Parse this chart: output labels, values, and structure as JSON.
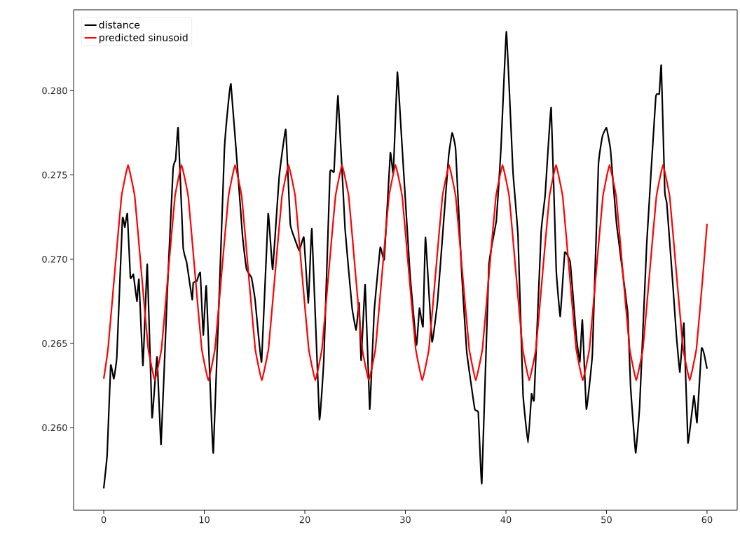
{
  "chart_data": {
    "type": "line",
    "xlim": [
      -3,
      63
    ],
    "ylim": [
      0.2551,
      0.2848
    ],
    "xticks": [
      0,
      10,
      20,
      30,
      40,
      50,
      60
    ],
    "yticks": [
      {
        "value": 0.26,
        "label": "0.260"
      },
      {
        "value": 0.265,
        "label": "0.265"
      },
      {
        "value": 0.27,
        "label": "0.270"
      },
      {
        "value": 0.275,
        "label": "0.275"
      },
      {
        "value": 0.28,
        "label": "0.280"
      }
    ],
    "legend": "top left",
    "series": [
      {
        "name": "distance",
        "color": "#000000",
        "x": [
          0,
          0.34,
          0.69,
          1.0,
          1.3,
          1.86,
          2.1,
          2.35,
          2.65,
          2.95,
          3.3,
          3.5,
          3.9,
          4.33,
          4.8,
          5.3,
          5.7,
          6.3,
          6.9,
          7.15,
          7.4,
          7.9,
          8.25,
          8.8,
          8.9,
          9.25,
          9.6,
          9.9,
          10.2,
          10.9,
          12.0,
          12.65,
          13.8,
          14.2,
          14.7,
          15.05,
          15.7,
          16.35,
          16.8,
          17.45,
          18.1,
          18.55,
          19.0,
          19.45,
          19.9,
          20.35,
          20.7,
          21.45,
          21.9,
          22.5,
          22.9,
          23.3,
          24.0,
          24.7,
          25.1,
          25.4,
          25.6,
          26.0,
          26.45,
          26.9,
          27.5,
          27.9,
          28.5,
          28.8,
          29.2,
          29.6,
          30.45,
          31.1,
          31.4,
          31.75,
          32.0,
          32.65,
          33.2,
          33.7,
          34.3,
          34.65,
          35.0,
          35.6,
          36.1,
          36.9,
          37.25,
          37.6,
          38.3,
          39.05,
          39.5,
          40.05,
          40.7,
          41.2,
          41.7,
          42.2,
          42.55,
          42.8,
          43.5,
          43.9,
          44.5,
          45.0,
          45.4,
          45.85,
          46.4,
          47.0,
          47.35,
          47.6,
          48.0,
          48.6,
          49.2,
          49.6,
          50.0,
          50.4,
          51.0,
          52.1,
          52.4,
          52.9,
          53.3,
          54.0,
          54.9,
          55.25,
          55.45,
          55.8,
          56.0,
          56.6,
          56.95,
          57.3,
          57.7,
          58.1,
          58.7,
          59.0,
          59.45,
          59.7,
          60.0
        ],
        "values": [
          0.2564,
          0.2584,
          0.2637,
          0.2629,
          0.2642,
          0.2724,
          0.2719,
          0.2727,
          0.2689,
          0.2691,
          0.2675,
          0.2688,
          0.2637,
          0.2697,
          0.2606,
          0.2642,
          0.259,
          0.2678,
          0.2754,
          0.2759,
          0.2778,
          0.2707,
          0.2698,
          0.2676,
          0.2686,
          0.2687,
          0.2692,
          0.2655,
          0.2684,
          0.2585,
          0.2765,
          0.2804,
          0.2714,
          0.2694,
          0.2689,
          0.2676,
          0.2639,
          0.2727,
          0.2694,
          0.2749,
          0.2777,
          0.2721,
          0.2712,
          0.2705,
          0.2713,
          0.2674,
          0.2718,
          0.2605,
          0.2642,
          0.2751,
          0.2752,
          0.2797,
          0.2718,
          0.2671,
          0.2658,
          0.2674,
          0.264,
          0.2685,
          0.2611,
          0.2669,
          0.2707,
          0.27,
          0.2763,
          0.2751,
          0.2811,
          0.2774,
          0.2692,
          0.2649,
          0.2671,
          0.266,
          0.2713,
          0.2651,
          0.2675,
          0.2714,
          0.2761,
          0.2775,
          0.2765,
          0.2692,
          0.2645,
          0.2611,
          0.2609,
          0.2567,
          0.2696,
          0.2723,
          0.2765,
          0.2835,
          0.2752,
          0.2714,
          0.262,
          0.2591,
          0.262,
          0.2617,
          0.2716,
          0.2738,
          0.279,
          0.2694,
          0.2666,
          0.2704,
          0.2698,
          0.2654,
          0.2639,
          0.2664,
          0.2611,
          0.2644,
          0.2756,
          0.2773,
          0.2778,
          0.2765,
          0.2721,
          0.2669,
          0.2624,
          0.2585,
          0.2613,
          0.2709,
          0.2796,
          0.2798,
          0.2815,
          0.274,
          0.2733,
          0.2685,
          0.2655,
          0.2633,
          0.2662,
          0.2591,
          0.2619,
          0.2603,
          0.2647,
          0.2644,
          0.2635
        ]
      },
      {
        "name": "predicted sinusoid",
        "color": "#ff0000",
        "x": [
          0,
          0.43,
          1.09,
          1.76,
          2.42,
          3.09,
          3.75,
          4.42,
          5.08,
          5.75,
          6.41,
          7.08,
          7.74,
          8.41,
          9.07,
          9.74,
          10.4,
          11.07,
          11.73,
          12.4,
          13.06,
          13.73,
          14.39,
          15.06,
          15.72,
          16.39,
          17.05,
          17.72,
          18.38,
          19.05,
          19.71,
          20.38,
          21.04,
          21.71,
          22.37,
          23.04,
          23.7,
          24.37,
          25.03,
          25.7,
          26.36,
          27.03,
          27.69,
          28.36,
          29.02,
          29.69,
          30.35,
          31.02,
          31.68,
          32.35,
          33.01,
          33.68,
          34.34,
          35.01,
          35.67,
          36.34,
          37.0,
          37.67,
          38.33,
          39.0,
          39.66,
          40.33,
          40.99,
          41.66,
          42.32,
          42.99,
          43.65,
          44.32,
          44.98,
          45.65,
          46.31,
          46.98,
          47.64,
          48.31,
          48.97,
          49.64,
          50.3,
          50.97,
          51.63,
          52.3,
          52.96,
          53.63,
          54.29,
          54.96,
          55.62,
          56.29,
          56.95,
          57.62,
          58.28,
          58.95,
          59.61,
          60.0
        ],
        "values": [
          0.2629,
          0.2647,
          0.2692,
          0.2737,
          0.2756,
          0.2737,
          0.2692,
          0.2647,
          0.2628,
          0.2647,
          0.2692,
          0.2737,
          0.2756,
          0.2737,
          0.2692,
          0.2647,
          0.2628,
          0.2647,
          0.2692,
          0.2737,
          0.2756,
          0.2737,
          0.2692,
          0.2647,
          0.2628,
          0.2647,
          0.2692,
          0.2737,
          0.2756,
          0.2737,
          0.2692,
          0.2647,
          0.2628,
          0.2647,
          0.2692,
          0.2737,
          0.2756,
          0.2737,
          0.2692,
          0.2647,
          0.2628,
          0.2647,
          0.2692,
          0.2737,
          0.2756,
          0.2737,
          0.2692,
          0.2647,
          0.2628,
          0.2647,
          0.2692,
          0.2737,
          0.2756,
          0.2737,
          0.2692,
          0.2647,
          0.2628,
          0.2647,
          0.2692,
          0.2737,
          0.2756,
          0.2737,
          0.2692,
          0.2647,
          0.2628,
          0.2647,
          0.2692,
          0.2737,
          0.2756,
          0.2737,
          0.2692,
          0.2647,
          0.2628,
          0.2647,
          0.2692,
          0.2737,
          0.2756,
          0.2737,
          0.2692,
          0.2647,
          0.2628,
          0.2647,
          0.2692,
          0.2737,
          0.2756,
          0.2737,
          0.2692,
          0.2647,
          0.2628,
          0.2647,
          0.2692,
          0.2721
        ]
      }
    ]
  }
}
